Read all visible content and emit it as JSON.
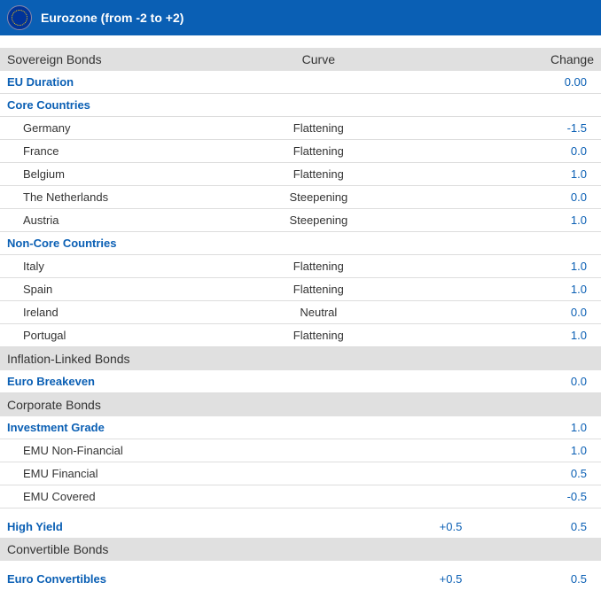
{
  "header": {
    "title": "Eurozone (from -2 to +2)"
  },
  "columns": {
    "label": "Sovereign Bonds",
    "curve": "Curve",
    "change": "Change"
  },
  "rows": [
    {
      "type": "section",
      "label": "Sovereign Bonds",
      "curve_header": "Curve",
      "change_header": "Change"
    },
    {
      "type": "category",
      "label": "EU Duration",
      "change": "0.00"
    },
    {
      "type": "category",
      "label": "Core Countries"
    },
    {
      "type": "data",
      "label": "Germany",
      "curve": "Flattening",
      "change": "-1.5"
    },
    {
      "type": "data",
      "label": "France",
      "curve": "Flattening",
      "change": "0.0"
    },
    {
      "type": "data",
      "label": "Belgium",
      "curve": "Flattening",
      "change": "1.0"
    },
    {
      "type": "data",
      "label": "The Netherlands",
      "curve": "Steepening",
      "change": "0.0"
    },
    {
      "type": "data",
      "label": "Austria",
      "curve": "Steepening",
      "change": "1.0"
    },
    {
      "type": "category",
      "label": "Non-Core Countries"
    },
    {
      "type": "data",
      "label": "Italy",
      "curve": "Flattening",
      "change": "1.0"
    },
    {
      "type": "data",
      "label": "Spain",
      "curve": "Flattening",
      "change": "1.0"
    },
    {
      "type": "data",
      "label": "Ireland",
      "curve": "Neutral",
      "change": "0.0"
    },
    {
      "type": "data",
      "label": "Portugal",
      "curve": "Flattening",
      "change": "1.0"
    },
    {
      "type": "section",
      "label": "Inflation-Linked Bonds"
    },
    {
      "type": "category",
      "label": "Euro Breakeven",
      "change": "0.0"
    },
    {
      "type": "section",
      "label": "Corporate Bonds"
    },
    {
      "type": "category",
      "label": "Investment Grade",
      "change": "1.0"
    },
    {
      "type": "data",
      "label": "EMU Non-Financial",
      "change": "1.0"
    },
    {
      "type": "data",
      "label": "EMU Financial",
      "change": "0.5"
    },
    {
      "type": "data",
      "label": "EMU Covered",
      "change": "-0.5"
    },
    {
      "type": "category",
      "label": "High Yield",
      "change_inline": "+0.5",
      "change": "0.5",
      "spacious": true
    },
    {
      "type": "section",
      "label": "Convertible Bonds"
    },
    {
      "type": "category",
      "label": "Euro Convertibles",
      "change_inline": "+0.5",
      "change": "0.5",
      "spacious": true
    }
  ]
}
